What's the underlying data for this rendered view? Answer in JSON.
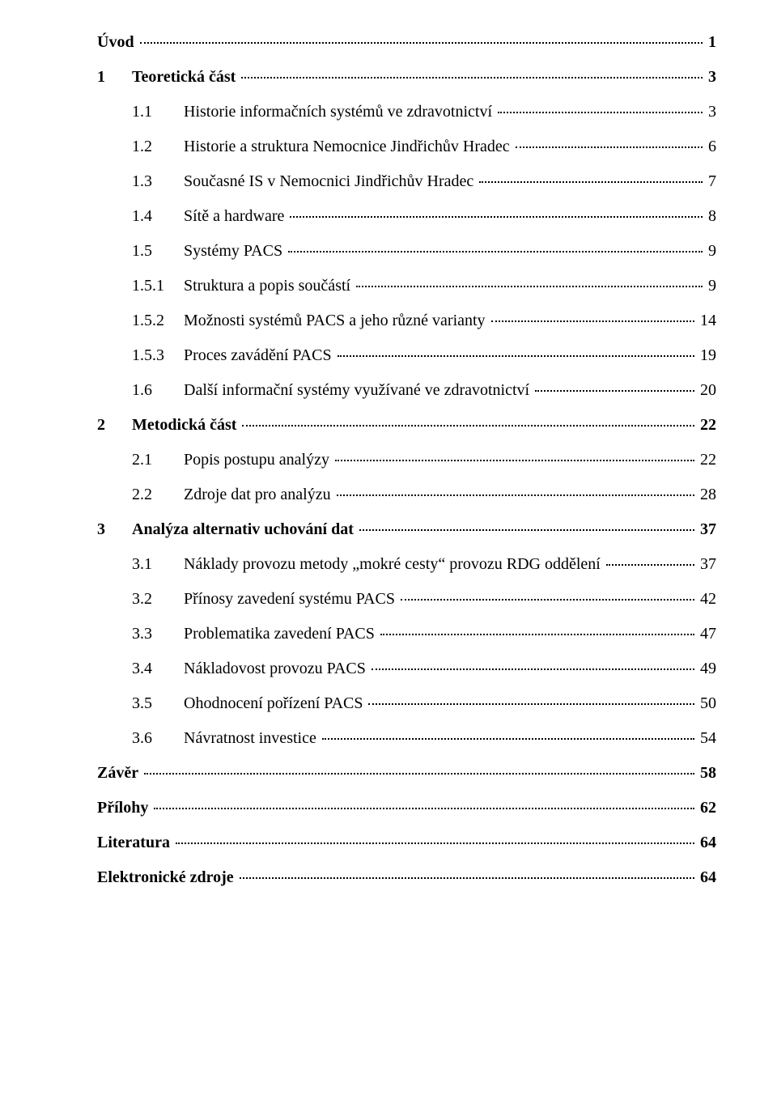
{
  "toc": [
    {
      "level": 0,
      "num": "",
      "text": "Úvod",
      "page": "1"
    },
    {
      "level": 1,
      "num": "1",
      "text": "Teoretická část",
      "page": "3"
    },
    {
      "level": 2,
      "num": "1.1",
      "text": "Historie informačních systémů ve zdravotnictví",
      "page": "3"
    },
    {
      "level": 2,
      "num": "1.2",
      "text": "Historie a struktura Nemocnice Jindřichův Hradec",
      "page": "6"
    },
    {
      "level": 2,
      "num": "1.3",
      "text": "Současné IS v Nemocnici Jindřichův Hradec",
      "page": "7"
    },
    {
      "level": 2,
      "num": "1.4",
      "text": "Sítě a hardware",
      "page": "8"
    },
    {
      "level": 2,
      "num": "1.5",
      "text": "Systémy PACS",
      "page": "9"
    },
    {
      "level": 3,
      "num": "1.5.1",
      "text": "Struktura a popis součástí",
      "page": "9"
    },
    {
      "level": 3,
      "num": "1.5.2",
      "text": "Možnosti systémů PACS a jeho různé varianty",
      "page": "14"
    },
    {
      "level": 3,
      "num": "1.5.3",
      "text": "Proces zavádění PACS",
      "page": "19"
    },
    {
      "level": 2,
      "num": "1.6",
      "text": "Další informační systémy využívané ve zdravotnictví",
      "page": "20"
    },
    {
      "level": 1,
      "num": "2",
      "text": "Metodická část",
      "page": "22"
    },
    {
      "level": 2,
      "num": "2.1",
      "text": "Popis postupu analýzy",
      "page": "22"
    },
    {
      "level": 2,
      "num": "2.2",
      "text": "Zdroje dat pro analýzu",
      "page": "28"
    },
    {
      "level": 1,
      "num": "3",
      "text": "Analýza alternativ uchování dat",
      "page": "37"
    },
    {
      "level": 2,
      "num": "3.1",
      "text": "Náklady provozu metody „mokré cesty“ provozu RDG oddělení",
      "page": "37"
    },
    {
      "level": 2,
      "num": "3.2",
      "text": "Přínosy zavedení systému PACS",
      "page": "42"
    },
    {
      "level": 2,
      "num": "3.3",
      "text": "Problematika zavedení PACS",
      "page": "47"
    },
    {
      "level": 2,
      "num": "3.4",
      "text": "Nákladovost provozu PACS",
      "page": "49"
    },
    {
      "level": 2,
      "num": "3.5",
      "text": "Ohodnocení pořízení PACS",
      "page": "50"
    },
    {
      "level": 2,
      "num": "3.6",
      "text": "Návratnost investice",
      "page": "54"
    },
    {
      "level": 0,
      "num": "",
      "text": "Závěr",
      "page": "58"
    },
    {
      "level": 0,
      "num": "",
      "text": "Přílohy",
      "page": "62"
    },
    {
      "level": 0,
      "num": "",
      "text": "Literatura",
      "page": "64"
    },
    {
      "level": 0,
      "num": "",
      "text": "Elektronické zdroje",
      "page": "64"
    }
  ]
}
